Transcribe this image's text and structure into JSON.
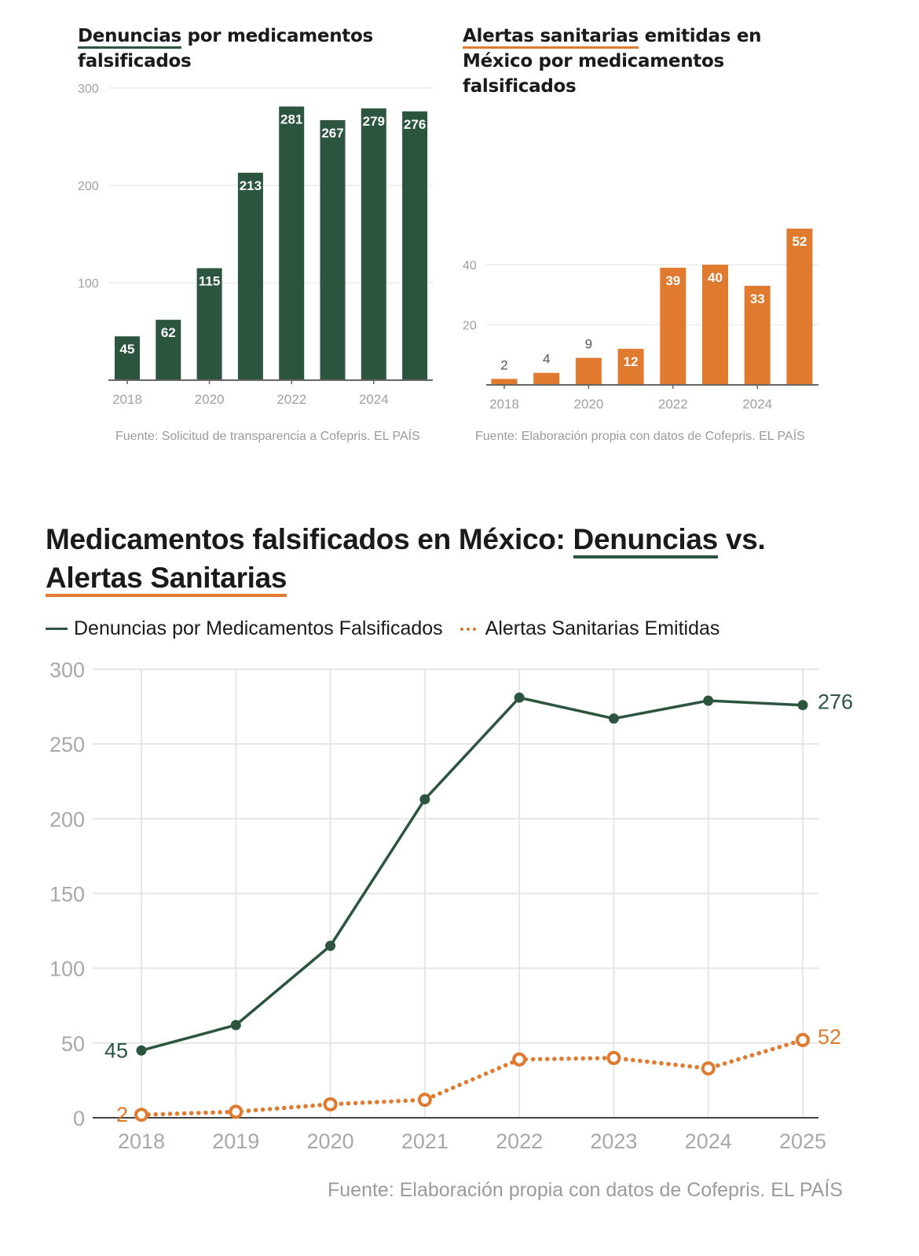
{
  "colors": {
    "green": "#2c5540",
    "orange": "#e07a2e",
    "grid": "#e6e6e6",
    "axis": "#555555",
    "tick": "#9b9b9b"
  },
  "chart_data": [
    {
      "id": "denuncias-bar",
      "type": "bar",
      "title_parts": [
        "Denuncias",
        " por medicamentos falsificados"
      ],
      "categories": [
        "2018",
        "2019",
        "2020",
        "2021",
        "2022",
        "2023",
        "2024",
        "2025"
      ],
      "values": [
        45,
        62,
        115,
        213,
        281,
        267,
        279,
        276
      ],
      "data_labels": [
        "45",
        "62",
        "115",
        "213",
        "281",
        "267",
        "279",
        "276"
      ],
      "x_tick_labels": [
        "2018",
        "2020",
        "2022",
        "2024"
      ],
      "y_ticks": [
        100,
        200,
        300
      ],
      "y_tick_labels": [
        "100",
        "200",
        "300"
      ],
      "ylim": [
        0,
        300
      ],
      "grid": true,
      "color": "#2c5540",
      "source": "Fuente: Solicitud de transparencia a Cofepris. EL PAÍS"
    },
    {
      "id": "alertas-bar",
      "type": "bar",
      "title_parts": [
        "Alertas sanitarias",
        " emitidas en México por medicamentos falsificados"
      ],
      "categories": [
        "2018",
        "2019",
        "2020",
        "2021",
        "2022",
        "2023",
        "2024",
        "2025"
      ],
      "values": [
        2,
        4,
        9,
        12,
        39,
        40,
        33,
        52
      ],
      "data_labels": [
        "2",
        "4",
        "9",
        "12",
        "39",
        "40",
        "33",
        "52"
      ],
      "x_tick_labels": [
        "2018",
        "2020",
        "2022",
        "2024"
      ],
      "y_ticks": [
        20,
        40
      ],
      "y_tick_labels": [
        "20",
        "40"
      ],
      "ylim": [
        0,
        52
      ],
      "grid": true,
      "color": "#e07a2e",
      "source": "Fuente: Elaboración propia con datos de Cofepris. EL PAÍS"
    },
    {
      "id": "comparison-line",
      "type": "line",
      "title_parts": [
        "Medicamentos falsificados en México: ",
        "Denuncias",
        " vs. ",
        "Alertas Sanitarias"
      ],
      "x": [
        "2018",
        "2019",
        "2020",
        "2021",
        "2022",
        "2023",
        "2024",
        "2025"
      ],
      "series": [
        {
          "name": "Denuncias por Medicamentos Falsificados",
          "values": [
            45,
            62,
            115,
            213,
            281,
            267,
            279,
            276
          ],
          "color": "#2c5540",
          "style": "solid",
          "marker": "filled",
          "end_labels": [
            "45",
            "276"
          ]
        },
        {
          "name": "Alertas Sanitarias Emitidas",
          "values": [
            2,
            4,
            9,
            12,
            39,
            40,
            33,
            52
          ],
          "color": "#e07a2e",
          "style": "dotted",
          "marker": "hollow",
          "end_labels": [
            "2",
            "52"
          ]
        }
      ],
      "y_ticks": [
        0,
        50,
        100,
        150,
        200,
        250,
        300
      ],
      "y_tick_labels": [
        "0",
        "50",
        "100",
        "150",
        "200",
        "250",
        "300"
      ],
      "ylim": [
        0,
        300
      ],
      "xlabel": "",
      "ylabel": "",
      "grid": true,
      "legend": "top-left",
      "source": "Fuente: Elaboración propia con datos de Cofepris. EL PAÍS"
    }
  ]
}
